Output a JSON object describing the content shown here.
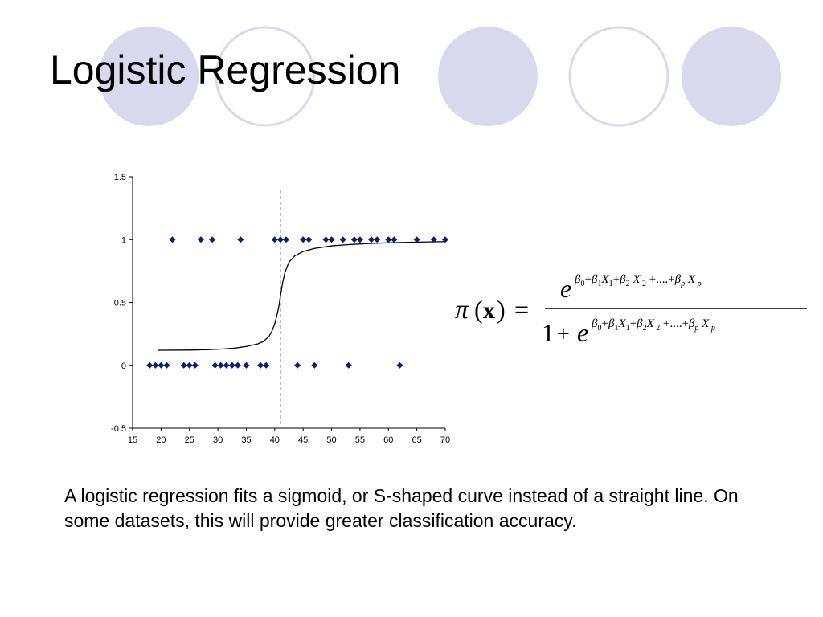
{
  "slide": {
    "title": "Logistic Regression",
    "caption": "A logistic regression fits a sigmoid, or S-shaped curve instead of a straight line.  On some datasets, this will provide greater classification accuracy."
  },
  "theme": {
    "circle_fill": "#d9d9ee",
    "circle_stroke": "#d9d9ee",
    "marker_color": "#0a1f7a",
    "curve_color": "#000000",
    "divider_color": "#555555"
  },
  "chart_data": {
    "type": "scatter",
    "xlim": [
      15,
      70
    ],
    "ylim": [
      -0.5,
      1.5
    ],
    "x_ticks": [
      "15",
      "20",
      "25",
      "30",
      "35",
      "40",
      "45",
      "50",
      "55",
      "60",
      "65",
      "70"
    ],
    "y_ticks": [
      "-0.5",
      "0",
      "0.5",
      "1",
      "1.5"
    ],
    "grid": false,
    "legend": "none",
    "series": [
      {
        "kind": "points",
        "marker": "diamond",
        "points": [
          [
            18,
            0
          ],
          [
            19,
            0
          ],
          [
            20,
            0
          ],
          [
            21,
            0
          ],
          [
            24,
            0
          ],
          [
            25,
            0
          ],
          [
            26,
            0
          ],
          [
            29.5,
            0
          ],
          [
            30.5,
            0
          ],
          [
            31.5,
            0
          ],
          [
            32.5,
            0
          ],
          [
            33.5,
            0
          ],
          [
            35,
            0
          ],
          [
            37.5,
            0
          ],
          [
            38.5,
            0
          ],
          [
            44,
            0
          ],
          [
            47,
            0
          ],
          [
            53,
            0
          ],
          [
            62,
            0
          ],
          [
            22,
            1
          ],
          [
            27,
            1
          ],
          [
            29,
            1
          ],
          [
            34,
            1
          ],
          [
            40,
            1
          ],
          [
            41,
            1
          ],
          [
            42,
            1
          ],
          [
            45,
            1
          ],
          [
            46,
            1
          ],
          [
            49,
            1
          ],
          [
            50,
            1
          ],
          [
            52,
            1
          ],
          [
            54,
            1
          ],
          [
            55,
            1
          ],
          [
            57,
            1
          ],
          [
            58,
            1
          ],
          [
            60,
            1
          ],
          [
            61,
            1
          ],
          [
            65,
            1
          ],
          [
            68,
            1
          ],
          [
            70,
            1
          ]
        ]
      },
      {
        "kind": "curve",
        "points": [
          [
            19.5,
            0.12
          ],
          [
            25,
            0.121
          ],
          [
            28,
            0.124
          ],
          [
            31,
            0.13
          ],
          [
            33,
            0.137
          ],
          [
            35,
            0.15
          ],
          [
            37,
            0.17
          ],
          [
            38,
            0.19
          ],
          [
            39,
            0.23
          ],
          [
            39.5,
            0.27
          ],
          [
            40,
            0.33
          ],
          [
            40.4,
            0.4
          ],
          [
            40.7,
            0.46
          ],
          [
            41,
            0.55
          ],
          [
            41.4,
            0.66
          ],
          [
            41.8,
            0.74
          ],
          [
            42.5,
            0.82
          ],
          [
            43.5,
            0.87
          ],
          [
            45,
            0.905
          ],
          [
            47,
            0.93
          ],
          [
            50,
            0.95
          ],
          [
            53,
            0.96
          ],
          [
            57,
            0.97
          ],
          [
            62,
            0.977
          ],
          [
            66,
            0.981
          ],
          [
            70,
            0.984
          ]
        ]
      }
    ],
    "vertical_line_x": 41
  }
}
